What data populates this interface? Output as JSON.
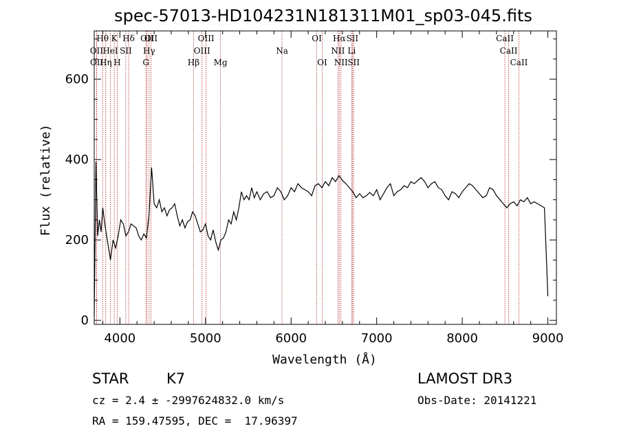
{
  "chart_data": {
    "type": "line",
    "title": "spec-57013-HD104231N181311M01_sp03-045.fits",
    "xlabel": "Wavelength (Å)",
    "ylabel": "Flux (relative)",
    "xlim": [
      3700,
      9100
    ],
    "ylim": [
      -10,
      720
    ],
    "xticks": [
      4000,
      5000,
      6000,
      7000,
      8000,
      9000
    ],
    "yticks": [
      0,
      200,
      400,
      600
    ],
    "line_color": "#000000",
    "marker_color": "#b22222",
    "spectrum": {
      "x": [
        3700,
        3720,
        3740,
        3760,
        3780,
        3800,
        3830,
        3860,
        3890,
        3920,
        3950,
        3980,
        4010,
        4040,
        4070,
        4100,
        4130,
        4160,
        4190,
        4220,
        4250,
        4280,
        4310,
        4340,
        4370,
        4400,
        4430,
        4460,
        4490,
        4520,
        4550,
        4580,
        4610,
        4640,
        4670,
        4700,
        4730,
        4760,
        4790,
        4820,
        4850,
        4880,
        4910,
        4940,
        4970,
        5000,
        5030,
        5060,
        5090,
        5120,
        5150,
        5180,
        5210,
        5240,
        5270,
        5300,
        5330,
        5360,
        5390,
        5420,
        5450,
        5480,
        5510,
        5540,
        5570,
        5600,
        5640,
        5680,
        5720,
        5760,
        5800,
        5840,
        5880,
        5920,
        5960,
        6000,
        6040,
        6080,
        6120,
        6160,
        6200,
        6240,
        6280,
        6320,
        6360,
        6400,
        6440,
        6480,
        6520,
        6560,
        6600,
        6640,
        6680,
        6720,
        6760,
        6800,
        6840,
        6880,
        6920,
        6960,
        7000,
        7040,
        7080,
        7120,
        7160,
        7200,
        7240,
        7280,
        7320,
        7360,
        7400,
        7440,
        7480,
        7520,
        7560,
        7600,
        7640,
        7680,
        7720,
        7760,
        7800,
        7840,
        7880,
        7920,
        7960,
        8000,
        8040,
        8080,
        8120,
        8160,
        8200,
        8240,
        8280,
        8320,
        8360,
        8400,
        8440,
        8480,
        8520,
        8560,
        8600,
        8640,
        8680,
        8720,
        8760,
        8800,
        8840,
        8880,
        8920,
        8960,
        9000
      ],
      "y": [
        10,
        395,
        210,
        250,
        220,
        280,
        230,
        190,
        150,
        200,
        180,
        210,
        250,
        240,
        210,
        220,
        240,
        235,
        230,
        210,
        200,
        215,
        205,
        260,
        380,
        290,
        280,
        300,
        270,
        280,
        260,
        275,
        280,
        290,
        260,
        235,
        250,
        230,
        245,
        250,
        270,
        260,
        240,
        220,
        225,
        240,
        210,
        200,
        225,
        195,
        175,
        200,
        205,
        220,
        250,
        240,
        270,
        250,
        280,
        320,
        300,
        310,
        300,
        330,
        305,
        320,
        300,
        315,
        320,
        305,
        310,
        330,
        320,
        300,
        310,
        330,
        320,
        340,
        330,
        325,
        320,
        310,
        335,
        340,
        330,
        345,
        335,
        355,
        345,
        360,
        348,
        340,
        330,
        320,
        305,
        315,
        305,
        310,
        318,
        310,
        325,
        300,
        315,
        330,
        340,
        310,
        320,
        325,
        335,
        330,
        345,
        340,
        348,
        355,
        345,
        330,
        340,
        345,
        330,
        325,
        310,
        300,
        320,
        315,
        305,
        320,
        330,
        340,
        335,
        325,
        315,
        305,
        310,
        330,
        325,
        310,
        300,
        290,
        280,
        290,
        295,
        285,
        300,
        295,
        305,
        290,
        295,
        290,
        285,
        280,
        60
      ]
    },
    "lines": [
      {
        "label": "Hθ",
        "wave": 3798,
        "row": 0
      },
      {
        "label": "OII",
        "wave": 3727,
        "row": 1
      },
      {
        "label": "OII",
        "wave": 3729,
        "row": 2
      },
      {
        "label": "Hη",
        "wave": 3835,
        "row": 2
      },
      {
        "label": "HeI",
        "wave": 3889,
        "row": 1
      },
      {
        "label": "K",
        "wave": 3934,
        "row": 0
      },
      {
        "label": "H",
        "wave": 3969,
        "row": 2
      },
      {
        "label": "SII",
        "wave": 4069,
        "row": 1
      },
      {
        "label": "Hδ",
        "wave": 4102,
        "row": 0
      },
      {
        "label": "G",
        "wave": 4304,
        "row": 2
      },
      {
        "label": "OII",
        "wave": 4317,
        "row": 0
      },
      {
        "label": "Hγ",
        "wave": 4341,
        "row": 1
      },
      {
        "label": "OII",
        "wave": 4363,
        "row": 0
      },
      {
        "label": "Hβ",
        "wave": 4861,
        "row": 2
      },
      {
        "label": "OIII",
        "wave": 4959,
        "row": 1
      },
      {
        "label": "OIII",
        "wave": 5007,
        "row": 0
      },
      {
        "label": "Mg",
        "wave": 5175,
        "row": 2
      },
      {
        "label": "Na",
        "wave": 5894,
        "row": 1
      },
      {
        "label": "OI",
        "wave": 6300,
        "row": 0
      },
      {
        "label": "OI",
        "wave": 6364,
        "row": 2
      },
      {
        "label": "NII",
        "wave": 6548,
        "row": 1
      },
      {
        "label": "Hα",
        "wave": 6563,
        "row": 0
      },
      {
        "label": "NII",
        "wave": 6583,
        "row": 2
      },
      {
        "label": "SII",
        "wave": 6716,
        "row": 0
      },
      {
        "label": "Li",
        "wave": 6708,
        "row": 1
      },
      {
        "label": "SII",
        "wave": 6731,
        "row": 2
      },
      {
        "label": "CaII",
        "wave": 8498,
        "row": 0
      },
      {
        "label": "CaII",
        "wave": 8542,
        "row": 1
      },
      {
        "label": "CaII",
        "wave": 8662,
        "row": 2
      }
    ]
  },
  "info": {
    "class_label": "STAR",
    "subclass": "K7",
    "survey": "LAMOST DR3",
    "cz_line": "cz = 2.4 ± -2997624832.0 km/s",
    "obs_date": "Obs-Date: 20141221",
    "radec": "RA = 159.47595, DEC =  17.96397"
  }
}
